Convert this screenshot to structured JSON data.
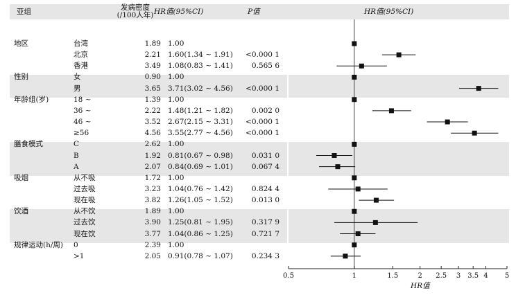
{
  "header": {
    "subgroup": "亚组",
    "incidence_line1": "发病密度",
    "incidence_line2": "(/100人年)",
    "hr_col": "HR值(95%CI)",
    "p_col": "P值",
    "plot_title": "HR值(95%CI)"
  },
  "groups": [
    {
      "name": "地区",
      "rows": [
        {
          "level": "台湾",
          "incidence": "1.89",
          "hr_text": "1.00",
          "p": ""
        },
        {
          "level": "北京",
          "incidence": "2.21",
          "hr_text": "1.60(1.34 ~ 1.91)",
          "p": "<0.000 1"
        },
        {
          "level": "香港",
          "incidence": "3.49",
          "hr_text": "1.08(0.83 ~ 1.41)",
          "p": "0.565 6"
        }
      ]
    },
    {
      "name": "性别",
      "rows": [
        {
          "level": "女",
          "incidence": "0.90",
          "hr_text": "1.00",
          "p": ""
        },
        {
          "level": "男",
          "incidence": "3.65",
          "hr_text": "3.71(3.02 ~ 4.56)",
          "p": "<0.000 1"
        }
      ]
    },
    {
      "name": "年龄组(岁)",
      "rows": [
        {
          "level": "18 ~",
          "incidence": "1.39",
          "hr_text": "1.00",
          "p": ""
        },
        {
          "level": "36 ~",
          "incidence": "2.22",
          "hr_text": "1.48(1.21 ~ 1.82)",
          "p": "0.002 0"
        },
        {
          "level": "46 ~",
          "incidence": "3.52",
          "hr_text": "2.67(2.15 ~ 3.31)",
          "p": "<0.000 1"
        },
        {
          "level": "≥56",
          "incidence": "4.56",
          "hr_text": "3.55(2.77 ~ 4.56)",
          "p": "<0.000 1"
        }
      ]
    },
    {
      "name": "膳食模式",
      "rows": [
        {
          "level": "C",
          "incidence": "2.62",
          "hr_text": "1.00",
          "p": ""
        },
        {
          "level": "B",
          "incidence": "1.92",
          "hr_text": "0.81(0.67 ~ 0.98)",
          "p": "0.031 0"
        },
        {
          "level": "A",
          "incidence": "2.07",
          "hr_text": "0.84(0.69 ~ 1.01)",
          "p": "0.067 4"
        }
      ]
    },
    {
      "name": "吸烟",
      "rows": [
        {
          "level": "从不吸",
          "incidence": "1.72",
          "hr_text": "1.00",
          "p": ""
        },
        {
          "level": "过去吸",
          "incidence": "3.23",
          "hr_text": "1.04(0.76 ~ 1.42)",
          "p": "0.824 4"
        },
        {
          "level": "现在吸",
          "incidence": "3.82",
          "hr_text": "1.26(1.05 ~ 1.52)",
          "p": "0.013 0"
        }
      ]
    },
    {
      "name": "饮酒",
      "rows": [
        {
          "level": "从不饮",
          "incidence": "1.89",
          "hr_text": "1.00",
          "p": ""
        },
        {
          "level": "过去饮",
          "incidence": "3.90",
          "hr_text": "1.25(0.81 ~ 1.95)",
          "p": "0.317 9"
        },
        {
          "level": "现在饮",
          "incidence": "3.77",
          "hr_text": "1.04(0.86 ~ 1.25)",
          "p": "0.721 7"
        }
      ]
    },
    {
      "name": "规律运动(h/周)",
      "rows": [
        {
          "level": "0",
          "incidence": "2.39",
          "hr_text": "1.00",
          "p": ""
        },
        {
          "level": ">1",
          "incidence": "2.05",
          "hr_text": "0.91(0.78 ~ 1.07)",
          "p": "0.234 3"
        }
      ]
    }
  ],
  "chart_data": {
    "type": "forest",
    "title": "HR值(95%CI)",
    "xlabel": "HR值",
    "xscale": "log",
    "xlim": [
      0.5,
      5
    ],
    "reference_line": 1,
    "ticks": [
      0.5,
      1,
      1.5,
      2,
      2.5,
      3,
      3.5,
      4,
      5
    ],
    "tick_labels": [
      "0.5",
      "1",
      "1.5",
      "2",
      "2.5",
      "3",
      "3.5",
      "4",
      "5"
    ],
    "points": [
      {
        "group": "地区",
        "level": "台湾",
        "hr": 1.0,
        "lo": null,
        "hi": null
      },
      {
        "group": "地区",
        "level": "北京",
        "hr": 1.6,
        "lo": 1.34,
        "hi": 1.91
      },
      {
        "group": "地区",
        "level": "香港",
        "hr": 1.08,
        "lo": 0.83,
        "hi": 1.41
      },
      {
        "group": "性别",
        "level": "女",
        "hr": 1.0,
        "lo": null,
        "hi": null
      },
      {
        "group": "性别",
        "level": "男",
        "hr": 3.71,
        "lo": 3.02,
        "hi": 4.56
      },
      {
        "group": "年龄组(岁)",
        "level": "18 ~",
        "hr": 1.0,
        "lo": null,
        "hi": null
      },
      {
        "group": "年龄组(岁)",
        "level": "36 ~",
        "hr": 1.48,
        "lo": 1.21,
        "hi": 1.82
      },
      {
        "group": "年龄组(岁)",
        "level": "46 ~",
        "hr": 2.67,
        "lo": 2.15,
        "hi": 3.31
      },
      {
        "group": "年龄组(岁)",
        "level": "≥56",
        "hr": 3.55,
        "lo": 2.77,
        "hi": 4.56
      },
      {
        "group": "膳食模式",
        "level": "C",
        "hr": 1.0,
        "lo": null,
        "hi": null
      },
      {
        "group": "膳食模式",
        "level": "B",
        "hr": 0.81,
        "lo": 0.67,
        "hi": 0.98
      },
      {
        "group": "膳食模式",
        "level": "A",
        "hr": 0.84,
        "lo": 0.69,
        "hi": 1.01
      },
      {
        "group": "吸烟",
        "level": "从不吸",
        "hr": 1.0,
        "lo": null,
        "hi": null
      },
      {
        "group": "吸烟",
        "level": "过去吸",
        "hr": 1.04,
        "lo": 0.76,
        "hi": 1.42
      },
      {
        "group": "吸烟",
        "level": "现在吸",
        "hr": 1.26,
        "lo": 1.05,
        "hi": 1.52
      },
      {
        "group": "饮酒",
        "level": "从不饮",
        "hr": 1.0,
        "lo": null,
        "hi": null
      },
      {
        "group": "饮酒",
        "level": "过去饮",
        "hr": 1.25,
        "lo": 0.81,
        "hi": 1.95
      },
      {
        "group": "饮酒",
        "level": "现在饮",
        "hr": 1.04,
        "lo": 0.86,
        "hi": 1.25
      },
      {
        "group": "规律运动(h/周)",
        "level": "0",
        "hr": 1.0,
        "lo": null,
        "hi": null
      },
      {
        "group": "规律运动(h/周)",
        "level": ">1",
        "hr": 0.91,
        "lo": 0.78,
        "hi": 1.07
      }
    ]
  }
}
